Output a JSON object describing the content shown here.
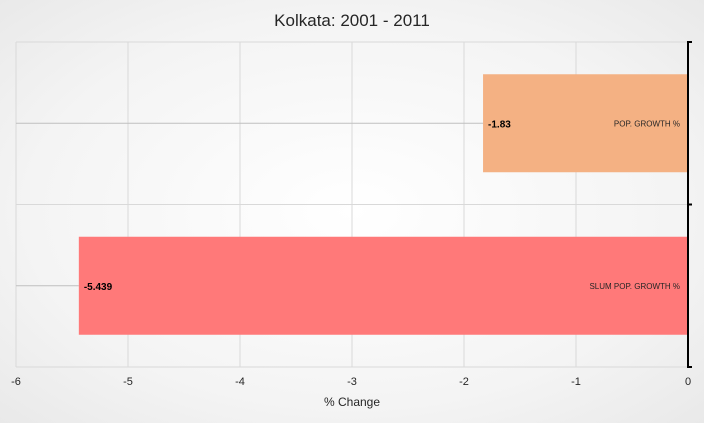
{
  "chart_data": {
    "type": "bar",
    "orientation": "horizontal",
    "title": "Kolkata: 2001 - 2011",
    "xlabel": "% Change",
    "ylabel": "",
    "xlim": [
      -6,
      0
    ],
    "x_ticks": [
      -6,
      -5,
      -4,
      -3,
      -2,
      -1,
      0
    ],
    "grid": true,
    "categories": [
      "POP. GROWTH %",
      "SLUM POP. GROWTH %"
    ],
    "values": [
      -1.83,
      -5.439
    ],
    "data_labels": [
      "-1.83",
      "-5.439"
    ],
    "colors": [
      "#f4b183",
      "#ff7979"
    ]
  }
}
